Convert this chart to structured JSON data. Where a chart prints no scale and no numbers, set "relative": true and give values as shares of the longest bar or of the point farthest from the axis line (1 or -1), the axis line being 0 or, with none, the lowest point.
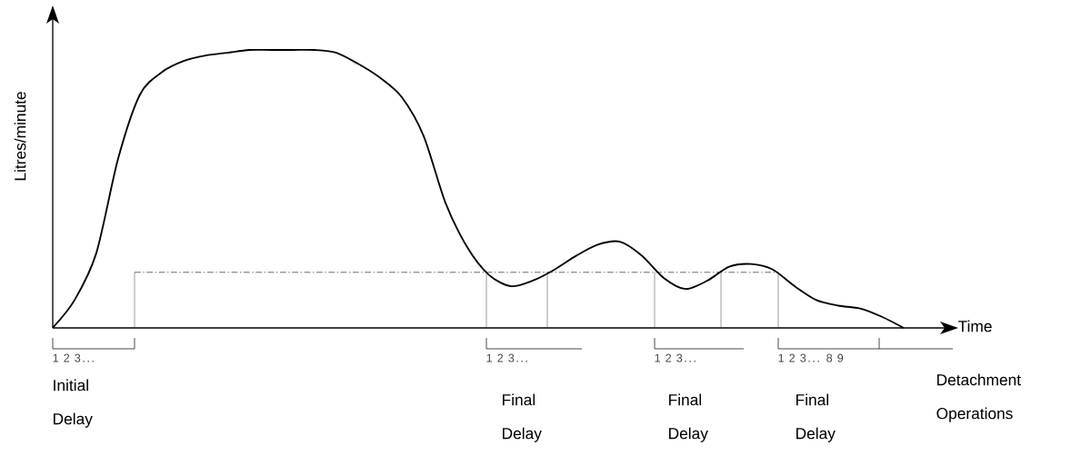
{
  "chart_data": {
    "type": "line",
    "relative": true,
    "xlabel": "Time",
    "ylabel": "Litres/minute",
    "categories": [
      null,
      null,
      null,
      null,
      null,
      null,
      null,
      null,
      null,
      null,
      null,
      null,
      null,
      null,
      null,
      null,
      null,
      null,
      null,
      null,
      null,
      null,
      null,
      null,
      null,
      null,
      null,
      null,
      null,
      null,
      null,
      null,
      null,
      null,
      null,
      null,
      null,
      null,
      null,
      null
    ],
    "series": [
      {
        "color": "#000000",
        "values": [
          0,
          0.1,
          0.27,
          0.61,
          0.84,
          0.92,
          0.96,
          0.98,
          0.99,
          1.0,
          1.0,
          1.0,
          1.0,
          0.99,
          0.95,
          0.9,
          0.83,
          0.69,
          0.45,
          0.29,
          0.19,
          0.15,
          0.17,
          0.21,
          0.26,
          0.3,
          0.31,
          0.26,
          0.18,
          0.14,
          0.17,
          0.22,
          0.23,
          0.21,
          0.15,
          0.1,
          0.08,
          0.07,
          0.04,
          0.0
        ]
      }
    ],
    "ref_lines": [
      {
        "axis": "y",
        "value": 0.2,
        "color": "#444444",
        "line_style": "dashed"
      }
    ],
    "annotations": [
      "1 2 3...",
      "1 2 3...",
      "1 2 3...",
      "1 2 3... 8 9",
      "Initial Delay",
      "Final Delay",
      "Final Delay",
      "Final Delay",
      "Detachment Operations"
    ]
  }
}
